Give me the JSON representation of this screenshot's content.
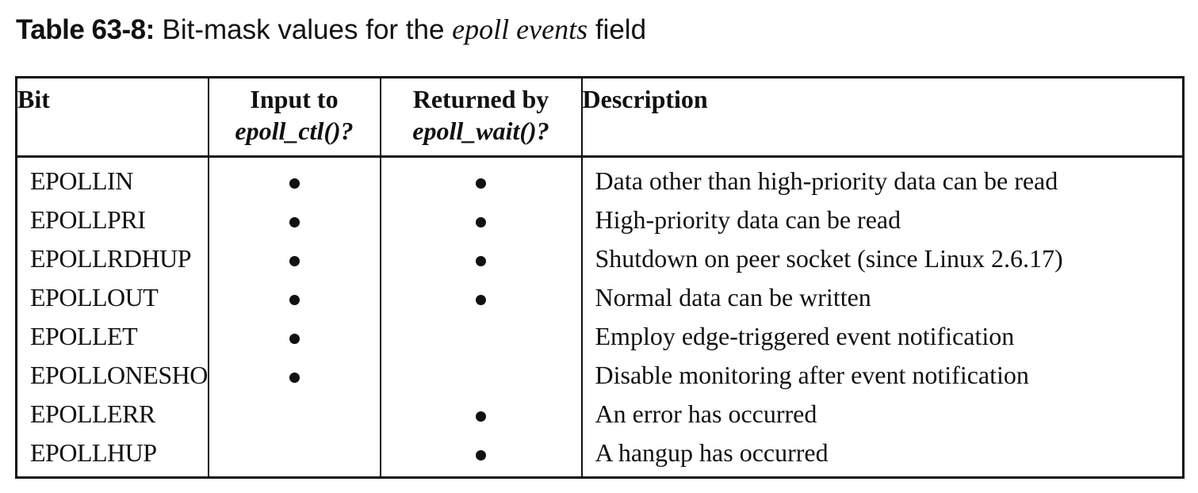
{
  "caption": {
    "label": "Table 63-8:",
    "text_before": " Bit-mask values for the ",
    "italic_term": "epoll events",
    "text_after": " field"
  },
  "headers": {
    "bit": "Bit",
    "input_line1": "Input to",
    "input_line2": "epoll_ctl()?",
    "returned_line1": "Returned by",
    "returned_line2": "epoll_wait()?",
    "description": "Description"
  },
  "rows": [
    {
      "bit": "EPOLLIN",
      "input": true,
      "returned": true,
      "description": "Data other than high-priority data can be read"
    },
    {
      "bit": "EPOLLPRI",
      "input": true,
      "returned": true,
      "description": "High-priority data can be read"
    },
    {
      "bit": "EPOLLRDHUP",
      "input": true,
      "returned": true,
      "description": "Shutdown on peer socket (since Linux 2.6.17)"
    },
    {
      "bit": "EPOLLOUT",
      "input": true,
      "returned": true,
      "description": "Normal data can be written"
    },
    {
      "bit": "EPOLLET",
      "input": true,
      "returned": false,
      "description": "Employ edge-triggered event notification"
    },
    {
      "bit": "EPOLLONESHOT",
      "input": true,
      "returned": false,
      "description": "Disable monitoring after event notification"
    },
    {
      "bit": "EPOLLERR",
      "input": false,
      "returned": true,
      "description": "An error has occurred"
    },
    {
      "bit": "EPOLLHUP",
      "input": false,
      "returned": true,
      "description": "A hangup has occurred"
    }
  ]
}
